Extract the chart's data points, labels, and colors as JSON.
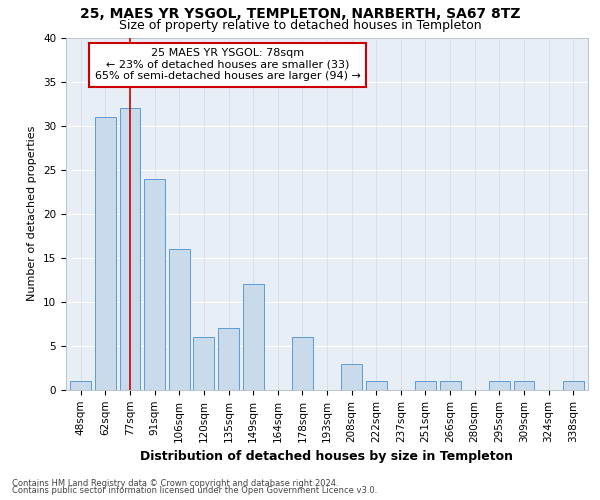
{
  "title1": "25, MAES YR YSGOL, TEMPLETON, NARBERTH, SA67 8TZ",
  "title2": "Size of property relative to detached houses in Templeton",
  "xlabel": "Distribution of detached houses by size in Templeton",
  "ylabel": "Number of detached properties",
  "categories": [
    "48sqm",
    "62sqm",
    "77sqm",
    "91sqm",
    "106sqm",
    "120sqm",
    "135sqm",
    "149sqm",
    "164sqm",
    "178sqm",
    "193sqm",
    "208sqm",
    "222sqm",
    "237sqm",
    "251sqm",
    "266sqm",
    "280sqm",
    "295sqm",
    "309sqm",
    "324sqm",
    "338sqm"
  ],
  "values": [
    1,
    31,
    32,
    24,
    16,
    6,
    7,
    12,
    0,
    6,
    0,
    3,
    1,
    0,
    1,
    1,
    0,
    1,
    1,
    0,
    1
  ],
  "bar_color": "#c9daea",
  "bar_edge_color": "#5b9bd5",
  "vline_x": 2,
  "vline_color": "#cc0000",
  "annotation_line1": "25 MAES YR YSGOL: 78sqm",
  "annotation_line2": "← 23% of detached houses are smaller (33)",
  "annotation_line3": "65% of semi-detached houses are larger (94) →",
  "annotation_box_color": "#ffffff",
  "annotation_box_edge": "#cc0000",
  "ylim": [
    0,
    40
  ],
  "yticks": [
    0,
    5,
    10,
    15,
    20,
    25,
    30,
    35,
    40
  ],
  "footer1": "Contains HM Land Registry data © Crown copyright and database right 2024.",
  "footer2": "Contains public sector information licensed under the Open Government Licence v3.0.",
  "bg_color": "#e8eef5",
  "title1_fontsize": 10,
  "title2_fontsize": 9,
  "xlabel_fontsize": 9,
  "ylabel_fontsize": 8,
  "tick_fontsize": 7.5,
  "annotation_fontsize": 8,
  "footer_fontsize": 6
}
